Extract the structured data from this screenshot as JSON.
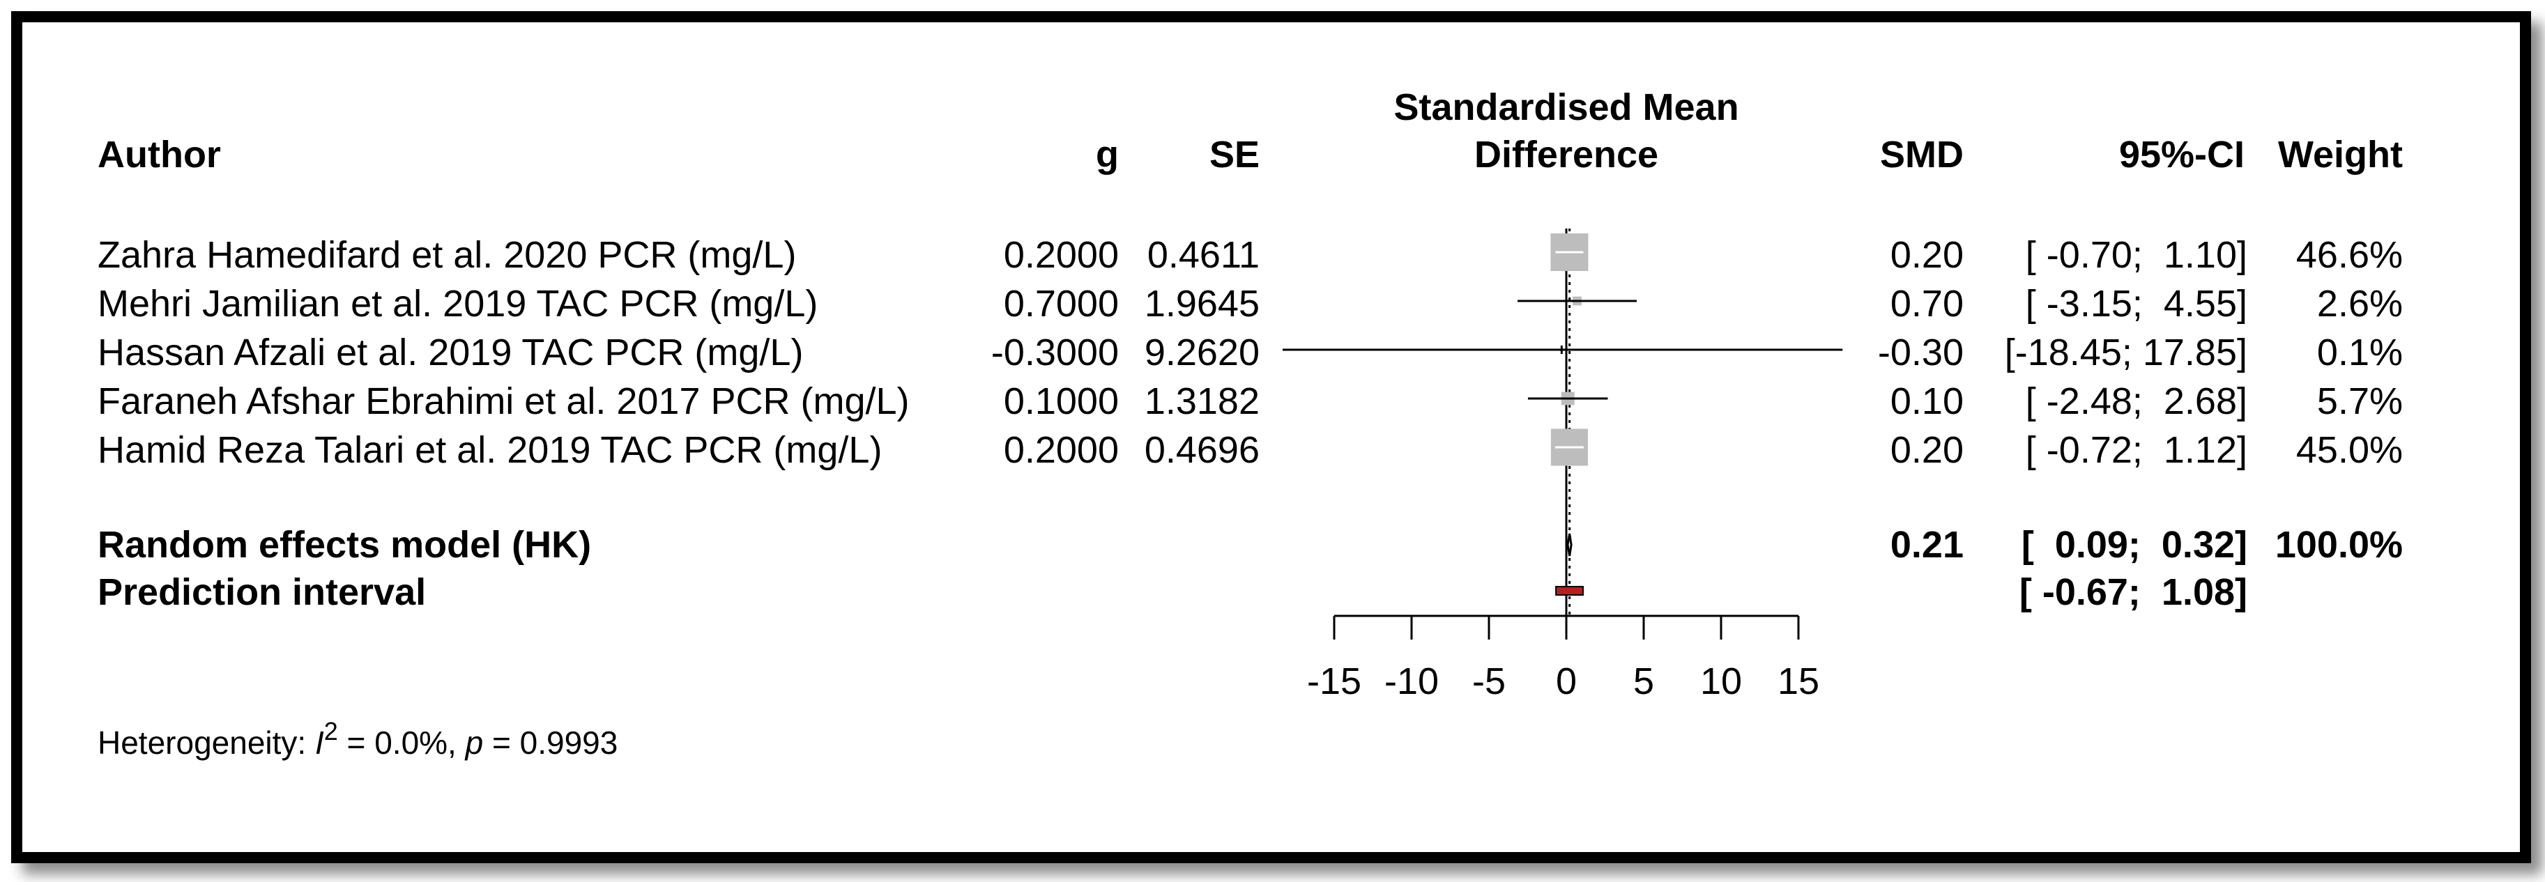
{
  "chart_data": {
    "type": "forest",
    "headers": {
      "author": "Author",
      "g": "g",
      "se": "SE",
      "plot_line1": "Standardised Mean",
      "plot_line2": "Difference",
      "smd": "SMD",
      "ci": "95%-CI",
      "weight": "Weight"
    },
    "studies": [
      {
        "author": "Zahra Hamedifard et al. 2020 PCR (mg/L)",
        "g": "0.2000",
        "se": "0.4611",
        "smd_text": "0.20",
        "ci_text": "[ -0.70;  1.10]",
        "weight_text": "46.6%",
        "smd": 0.2,
        "lower": -0.7,
        "upper": 1.1,
        "weight": 46.6
      },
      {
        "author": "Mehri Jamilian et al. 2019 TAC PCR (mg/L)",
        "g": "0.7000",
        "se": "1.9645",
        "smd_text": "0.70",
        "ci_text": "[ -3.15;  4.55]",
        "weight_text": "2.6%",
        "smd": 0.7,
        "lower": -3.15,
        "upper": 4.55,
        "weight": 2.6
      },
      {
        "author": "Hassan Afzali et al. 2019 TAC PCR (mg/L)",
        "g": "-0.3000",
        "se": "9.2620",
        "smd_text": "-0.30",
        "ci_text": "[-18.45; 17.85]",
        "weight_text": "0.1%",
        "smd": -0.3,
        "lower": -18.45,
        "upper": 17.85,
        "weight": 0.1
      },
      {
        "author": "Faraneh Afshar Ebrahimi et al. 2017 PCR (mg/L)",
        "g": "0.1000",
        "se": "1.3182",
        "smd_text": "0.10",
        "ci_text": "[ -2.48;  2.68]",
        "weight_text": "5.7%",
        "smd": 0.1,
        "lower": -2.48,
        "upper": 2.68,
        "weight": 5.7
      },
      {
        "author": "Hamid Reza Talari et al. 2019 TAC PCR (mg/L)",
        "g": "0.2000",
        "se": "0.4696",
        "smd_text": "0.20",
        "ci_text": "[ -0.72;  1.12]",
        "weight_text": "45.0%",
        "smd": 0.2,
        "lower": -0.72,
        "upper": 1.12,
        "weight": 45.0
      }
    ],
    "pooled": {
      "label": "Random effects model (HK)",
      "smd_text": "0.21",
      "ci_text": "[  0.09;  0.32]",
      "weight_text": "100.0%",
      "smd": 0.21,
      "lower": 0.09,
      "upper": 0.32
    },
    "prediction": {
      "label": "Prediction interval",
      "ci_text": "[ -0.67;  1.08]",
      "lower": -0.67,
      "upper": 1.08
    },
    "x_axis": {
      "ticks": [
        -15,
        -10,
        -5,
        0,
        5,
        10,
        15
      ],
      "tick_labels": [
        "-15",
        "-10",
        "-5",
        "0",
        "5",
        "10",
        "15"
      ],
      "xlim": [
        -15,
        15
      ]
    },
    "heterogeneity": {
      "prefix": "Heterogeneity: ",
      "i_symbol": "I",
      "i_exponent": "2",
      "i_value": " = 0.0%, ",
      "p_symbol": "p",
      "p_value": " = 0.9993"
    },
    "colors": {
      "square": "#bdbdbd",
      "prediction_fill": "#b22222",
      "line": "#000000"
    }
  }
}
